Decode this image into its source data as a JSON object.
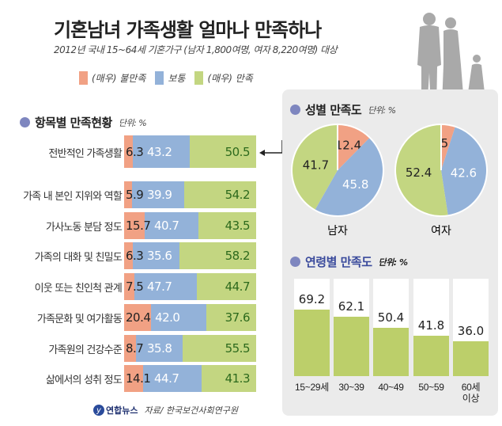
{
  "header": {
    "title": "기혼남녀 가족생활 얼마나 만족하나",
    "subtitle": "2012년 국내 15~64세 기혼가구 (남자 1,800여명, 여자 8,220여명) 대상"
  },
  "legend": [
    {
      "label": "(매우) 불만족",
      "color": "#f1a184"
    },
    {
      "label": "보통",
      "color": "#93b2d9"
    },
    {
      "label": "(매우) 만족",
      "color": "#c3d681"
    }
  ],
  "footer": {
    "brand": "연합뉴스",
    "source": "자료/ 한국보건사회연구원"
  },
  "chart_data": [
    {
      "type": "bar",
      "stacked": true,
      "orientation": "horizontal",
      "title": "항목별 만족현황",
      "unit": "단위: %",
      "categories": [
        "전반적인 가족생활",
        "가족 내 본인 지위와 역할",
        "가사노동 분담 정도",
        "가족의 대화 및 친밀도",
        "이웃 또는 친인척 관계",
        "가족문화 및 여가활동",
        "가족원의 건강수준",
        "삶에서의 성취 정도"
      ],
      "series": [
        {
          "name": "(매우) 불만족",
          "values": [
            6.3,
            5.9,
            15.7,
            6.3,
            7.5,
            20.4,
            8.7,
            14.1
          ]
        },
        {
          "name": "보통",
          "values": [
            43.2,
            39.9,
            40.7,
            35.6,
            47.7,
            42.0,
            35.8,
            44.7
          ]
        },
        {
          "name": "(매우) 만족",
          "values": [
            50.5,
            54.2,
            43.5,
            58.2,
            44.7,
            37.6,
            55.5,
            41.3
          ]
        }
      ]
    },
    {
      "type": "pie",
      "title": "성별 만족도",
      "unit": "단위: %",
      "pies": [
        {
          "name": "남자",
          "values": [
            12.4,
            45.8,
            41.7
          ]
        },
        {
          "name": "여자",
          "values": [
            5.0,
            42.6,
            52.4
          ]
        }
      ],
      "slices": [
        "(매우) 불만족",
        "보통",
        "(매우) 만족"
      ]
    },
    {
      "type": "bar",
      "title": "연령별 만족도",
      "unit": "단위: %",
      "categories": [
        "15~29세",
        "30~39",
        "40~49",
        "50~59",
        "60세 이상"
      ],
      "values": [
        69.2,
        62.1,
        50.4,
        41.8,
        36.0
      ],
      "ylim": [
        0,
        100
      ]
    }
  ]
}
